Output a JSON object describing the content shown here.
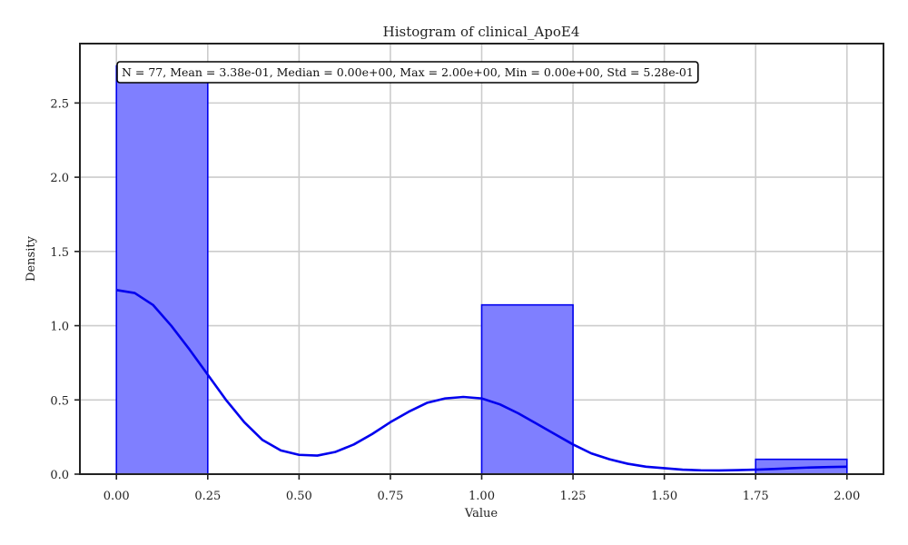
{
  "chart_data": {
    "type": "bar",
    "title": "Histogram of clinical_ApoE4",
    "xlabel": "Value",
    "ylabel": "Density",
    "xlim": [
      -0.1,
      2.1
    ],
    "ylim": [
      0,
      2.9
    ],
    "xticks": [
      0.0,
      0.25,
      0.5,
      0.75,
      1.0,
      1.25,
      1.5,
      1.75,
      2.0
    ],
    "xtick_labels": [
      "0.00",
      "0.25",
      "0.50",
      "0.75",
      "1.00",
      "1.25",
      "1.50",
      "1.75",
      "2.00"
    ],
    "yticks": [
      0.0,
      0.5,
      1.0,
      1.5,
      2.0,
      2.5
    ],
    "ytick_labels": [
      "0.0",
      "0.5",
      "1.0",
      "1.5",
      "2.0",
      "2.5"
    ],
    "grid": true,
    "bins": [
      {
        "x0": 0.0,
        "x1": 0.25,
        "density": 2.75
      },
      {
        "x0": 1.0,
        "x1": 1.25,
        "density": 1.14
      },
      {
        "x0": 1.75,
        "x1": 2.0,
        "density": 0.1
      }
    ],
    "kde": {
      "x": [
        0.0,
        0.05,
        0.1,
        0.15,
        0.2,
        0.25,
        0.3,
        0.35,
        0.4,
        0.45,
        0.5,
        0.55,
        0.6,
        0.65,
        0.7,
        0.75,
        0.8,
        0.85,
        0.9,
        0.95,
        1.0,
        1.05,
        1.1,
        1.15,
        1.2,
        1.25,
        1.3,
        1.35,
        1.4,
        1.45,
        1.5,
        1.55,
        1.6,
        1.65,
        1.7,
        1.75,
        1.8,
        1.85,
        1.9,
        1.95,
        2.0
      ],
      "y": [
        1.24,
        1.22,
        1.14,
        1.0,
        0.84,
        0.67,
        0.5,
        0.35,
        0.23,
        0.16,
        0.13,
        0.125,
        0.15,
        0.2,
        0.27,
        0.35,
        0.42,
        0.48,
        0.51,
        0.52,
        0.51,
        0.47,
        0.41,
        0.34,
        0.27,
        0.2,
        0.14,
        0.1,
        0.07,
        0.05,
        0.04,
        0.03,
        0.026,
        0.025,
        0.027,
        0.03,
        0.035,
        0.04,
        0.045,
        0.048,
        0.05
      ]
    },
    "stats_text": "N = 77, Mean = 3.38e-01, Median = 0.00e+00, Max = 2.00e+00, Min = 0.00e+00, Std = 5.28e-01",
    "colors": {
      "bar_fill": "#7f7fff",
      "bar_edge": "#0000ee",
      "kde_line": "#0000ee"
    }
  }
}
